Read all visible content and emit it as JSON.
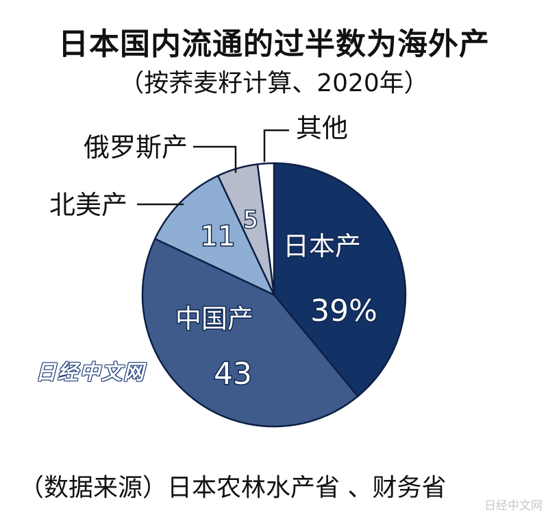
{
  "title": "日本国内流通的过半数为海外产",
  "subtitle": "（按荞麦籽计算、2020年）",
  "source": "（数据来源）日本农林水产省 、财务省",
  "watermark": "日经中文网",
  "corner_watermark": "日经中文网",
  "chart_data": {
    "type": "pie",
    "title": "日本国内流通的过半数为海外产",
    "subtitle": "（按荞麦籽计算、2020年）",
    "start": "12 o'clock, clockwise",
    "slices": [
      {
        "label": "日本产",
        "value": 39,
        "value_label": "39%",
        "color": "#123266",
        "label_position": "inside"
      },
      {
        "label": "中国产",
        "value": 43,
        "value_label": "43",
        "color": "#3e5b8c",
        "label_position": "inside"
      },
      {
        "label": "北美产",
        "value": 11,
        "value_label": "11",
        "color": "#8eaed3",
        "label_position": "outside"
      },
      {
        "label": "俄罗斯产",
        "value": 5,
        "value_label": "5",
        "color": "#b6bccb",
        "label_position": "outside"
      },
      {
        "label": "其他",
        "value": 2,
        "value_label": "",
        "color": "#ffffff",
        "label_position": "outside"
      }
    ]
  }
}
